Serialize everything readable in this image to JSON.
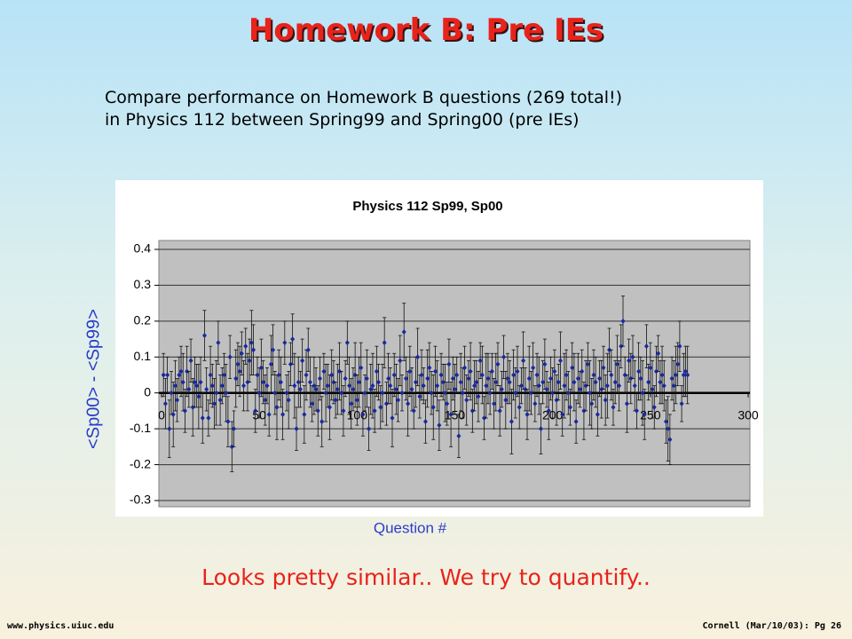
{
  "slide": {
    "title": "Homework B: Pre IEs",
    "description": [
      "Compare performance on Homework B questions (269 total!)",
      "in Physics 112 between Spring99 and Spring00 (pre IEs)"
    ],
    "conclusion": "Looks pretty similar.. We try to quantify..",
    "footer_left": "www.physics.uiuc.edu",
    "footer_right": "Cornell (Mar/10/03): Pg 26"
  },
  "chart_data": {
    "type": "scatter",
    "title": "Physics 112 Sp99, Sp00",
    "x_label": "Question #",
    "y_label": "<Sp00> - <Sp99>",
    "xlim": [
      0,
      300
    ],
    "xticks": [
      0,
      50,
      100,
      150,
      200,
      250,
      300
    ],
    "ylim": [
      -0.3,
      0.4
    ],
    "yticks": [
      -0.3,
      -0.2,
      -0.1,
      0,
      0.1,
      0.2,
      0.3,
      0.4
    ],
    "grid": true,
    "series": [
      {
        "name": "Sp00 - Sp99",
        "color": "#1a2a9c",
        "x": [
          1,
          2,
          3,
          4,
          5,
          6,
          7,
          8,
          9,
          10,
          11,
          12,
          13,
          14,
          15,
          16,
          17,
          18,
          19,
          20,
          21,
          22,
          23,
          24,
          25,
          26,
          27,
          28,
          29,
          30,
          31,
          32,
          33,
          34,
          35,
          36,
          37,
          38,
          39,
          40,
          41,
          42,
          43,
          44,
          45,
          46,
          47,
          48,
          49,
          50,
          51,
          52,
          53,
          54,
          55,
          56,
          57,
          58,
          59,
          60,
          61,
          62,
          63,
          64,
          65,
          66,
          67,
          68,
          69,
          70,
          71,
          72,
          73,
          74,
          75,
          76,
          77,
          78,
          79,
          80,
          81,
          82,
          83,
          84,
          85,
          86,
          87,
          88,
          89,
          90,
          91,
          92,
          93,
          94,
          95,
          96,
          97,
          98,
          99,
          100,
          101,
          102,
          103,
          104,
          105,
          106,
          107,
          108,
          109,
          110,
          111,
          112,
          113,
          114,
          115,
          116,
          117,
          118,
          119,
          120,
          121,
          122,
          123,
          124,
          125,
          126,
          127,
          128,
          129,
          130,
          131,
          132,
          133,
          134,
          135,
          136,
          137,
          138,
          139,
          140,
          141,
          142,
          143,
          144,
          145,
          146,
          147,
          148,
          149,
          150,
          151,
          152,
          153,
          154,
          155,
          156,
          157,
          158,
          159,
          160,
          161,
          162,
          163,
          164,
          165,
          166,
          167,
          168,
          169,
          170,
          171,
          172,
          173,
          174,
          175,
          176,
          177,
          178,
          179,
          180,
          181,
          182,
          183,
          184,
          185,
          186,
          187,
          188,
          189,
          190,
          191,
          192,
          193,
          194,
          195,
          196,
          197,
          198,
          199,
          200,
          201,
          202,
          203,
          204,
          205,
          206,
          207,
          208,
          209,
          210,
          211,
          212,
          213,
          214,
          215,
          216,
          217,
          218,
          219,
          220,
          221,
          222,
          223,
          224,
          225,
          226,
          227,
          228,
          229,
          230,
          231,
          232,
          233,
          234,
          235,
          236,
          237,
          238,
          239,
          240,
          241,
          242,
          243,
          244,
          245,
          246,
          247,
          248,
          249,
          250,
          251,
          252,
          253,
          254,
          255,
          256,
          257,
          258,
          259,
          260,
          261,
          262,
          263,
          264,
          265,
          266,
          267,
          268,
          269
        ],
        "values": [
          0.05,
          -0.03,
          0.05,
          -0.1,
          0.0,
          -0.06,
          0.02,
          -0.02,
          0.05,
          0.06,
          0.03,
          -0.05,
          0.06,
          0.01,
          0.09,
          -0.04,
          0.03,
          0.02,
          -0.01,
          0.03,
          -0.07,
          0.16,
          0.01,
          -0.07,
          0.05,
          0.02,
          -0.03,
          0.0,
          0.14,
          -0.02,
          0.02,
          0.05,
          0.0,
          -0.08,
          0.1,
          -0.15,
          -0.1,
          0.04,
          0.08,
          0.06,
          0.11,
          0.02,
          0.13,
          0.03,
          0.09,
          0.14,
          0.12,
          -0.05,
          0.05,
          0.0,
          0.07,
          0.03,
          -0.02,
          0.02,
          -0.06,
          0.08,
          0.12,
          0.0,
          -0.04,
          0.05,
          0.03,
          -0.06,
          0.14,
          0.0,
          -0.02,
          0.08,
          0.15,
          0.02,
          -0.1,
          0.03,
          0.01,
          0.09,
          -0.06,
          0.05,
          0.12,
          0.03,
          -0.03,
          0.02,
          0.01,
          -0.05,
          0.04,
          -0.08,
          0.06,
          0.0,
          0.02,
          -0.04,
          0.05,
          0.03,
          -0.02,
          0.01,
          0.06,
          0.0,
          -0.05,
          0.04,
          0.14,
          0.02,
          -0.03,
          0.01,
          0.05,
          -0.02,
          0.03,
          0.07,
          -0.06,
          0.0,
          0.04,
          -0.1,
          0.01,
          0.02,
          -0.05,
          0.06,
          0.03,
          -0.04,
          0.0,
          0.14,
          -0.03,
          0.04,
          0.02,
          -0.07,
          0.05,
          0.01,
          -0.02,
          0.09,
          0.0,
          0.17,
          0.04,
          -0.03,
          0.06,
          0.01,
          -0.05,
          0.03,
          0.1,
          -0.01,
          0.05,
          0.02,
          -0.08,
          0.04,
          0.07,
          0.0,
          -0.04,
          0.06,
          0.02,
          -0.09,
          0.05,
          0.03,
          0.0,
          -0.03,
          0.08,
          -0.06,
          0.04,
          0.01,
          0.05,
          -0.12,
          0.03,
          0.0,
          0.07,
          -0.02,
          0.04,
          0.06,
          -0.05,
          0.02,
          0.03,
          -0.01,
          0.09,
          0.05,
          -0.07,
          0.02,
          0.04,
          0.0,
          0.06,
          -0.03,
          0.03,
          0.08,
          -0.05,
          0.01,
          0.1,
          -0.02,
          0.04,
          0.03,
          -0.08,
          0.05,
          0.0,
          0.06,
          -0.04,
          0.02,
          0.09,
          0.01,
          -0.06,
          0.04,
          0.0,
          0.07,
          -0.03,
          0.05,
          0.02,
          -0.1,
          0.03,
          0.08,
          0.01,
          -0.05,
          0.04,
          0.0,
          0.06,
          -0.02,
          0.03,
          0.09,
          -0.06,
          0.02,
          0.05,
          0.0,
          -0.04,
          0.07,
          0.03,
          -0.08,
          0.04,
          0.01,
          0.06,
          -0.05,
          0.02,
          0.08,
          0.0,
          -0.03,
          0.05,
          0.03,
          -0.06,
          0.04,
          0.01,
          0.07,
          -0.02,
          0.02,
          0.12,
          0.05,
          -0.04,
          0.03,
          0.08,
          0.02,
          0.13,
          0.2,
          0.05,
          -0.03,
          0.09,
          0.04,
          0.1,
          0.02,
          -0.05,
          0.06,
          0.04,
          0.0,
          -0.06,
          0.13,
          0.03,
          0.07,
          0.01,
          -0.04,
          0.06,
          0.11,
          0.03,
          0.05,
          0.02,
          -0.08,
          -0.1,
          -0.13,
          0.04,
          0.02,
          0.05,
          0.08,
          0.13,
          -0.03,
          0.05,
          0.06,
          0.05
        ],
        "errors": [
          0.06,
          0.07,
          0.05,
          0.08,
          0.06,
          0.09,
          0.07,
          0.06,
          0.05,
          0.07,
          0.08,
          0.06,
          0.07,
          0.05,
          0.06,
          0.08,
          0.07,
          0.06,
          0.09,
          0.07,
          0.07,
          0.07,
          0.06,
          0.05,
          0.08,
          0.06,
          0.07,
          0.09,
          0.06,
          0.07,
          0.05,
          0.06,
          0.08,
          0.07,
          0.06,
          0.07,
          0.05,
          0.08,
          0.06,
          0.07,
          0.06,
          0.07,
          0.05,
          0.08,
          0.06,
          0.09,
          0.07,
          0.06,
          0.05,
          0.07,
          0.08,
          0.06,
          0.07,
          0.05,
          0.06,
          0.08,
          0.07,
          0.06,
          0.09,
          0.07,
          0.07,
          0.07,
          0.06,
          0.05,
          0.08,
          0.06,
          0.07,
          0.09,
          0.06,
          0.07,
          0.05,
          0.06,
          0.08,
          0.07,
          0.06,
          0.07,
          0.05,
          0.08,
          0.06,
          0.07,
          0.06,
          0.07,
          0.05,
          0.08,
          0.06,
          0.09,
          0.07,
          0.06,
          0.05,
          0.07,
          0.08,
          0.06,
          0.07,
          0.05,
          0.06,
          0.08,
          0.07,
          0.06,
          0.09,
          0.07,
          0.07,
          0.07,
          0.06,
          0.05,
          0.08,
          0.06,
          0.07,
          0.09,
          0.06,
          0.07,
          0.05,
          0.06,
          0.08,
          0.07,
          0.06,
          0.07,
          0.05,
          0.08,
          0.06,
          0.07,
          0.06,
          0.07,
          0.05,
          0.08,
          0.06,
          0.09,
          0.07,
          0.06,
          0.05,
          0.07,
          0.08,
          0.06,
          0.07,
          0.05,
          0.06,
          0.08,
          0.07,
          0.06,
          0.09,
          0.07,
          0.07,
          0.07,
          0.06,
          0.05,
          0.08,
          0.06,
          0.07,
          0.09,
          0.06,
          0.07,
          0.05,
          0.06,
          0.08,
          0.07,
          0.06,
          0.07,
          0.05,
          0.08,
          0.06,
          0.07,
          0.06,
          0.07,
          0.05,
          0.08,
          0.06,
          0.09,
          0.07,
          0.06,
          0.05,
          0.07,
          0.08,
          0.06,
          0.07,
          0.05,
          0.06,
          0.08,
          0.07,
          0.06,
          0.09,
          0.07,
          0.07,
          0.07,
          0.06,
          0.05,
          0.08,
          0.06,
          0.07,
          0.09,
          0.06,
          0.07,
          0.05,
          0.06,
          0.08,
          0.07,
          0.06,
          0.07,
          0.05,
          0.08,
          0.06,
          0.07,
          0.06,
          0.07,
          0.05,
          0.08,
          0.06,
          0.09,
          0.07,
          0.06,
          0.05,
          0.07,
          0.08,
          0.06,
          0.07,
          0.05,
          0.06,
          0.08,
          0.07,
          0.06,
          0.09,
          0.07,
          0.07,
          0.07,
          0.06,
          0.05,
          0.08,
          0.06,
          0.07,
          0.09,
          0.06,
          0.07,
          0.05,
          0.06,
          0.08,
          0.07,
          0.06,
          0.07,
          0.05,
          0.08,
          0.06,
          0.07,
          0.06,
          0.07,
          0.05,
          0.08,
          0.06,
          0.09,
          0.07,
          0.06,
          0.05,
          0.07,
          0.08,
          0.06,
          0.07,
          0.05,
          0.06,
          0.08,
          0.07,
          0.06,
          0.09,
          0.07,
          0.06,
          0.07,
          0.08,
          0.06,
          0.07,
          0.05,
          0.06,
          0.07,
          0.08
        ]
      }
    ]
  }
}
